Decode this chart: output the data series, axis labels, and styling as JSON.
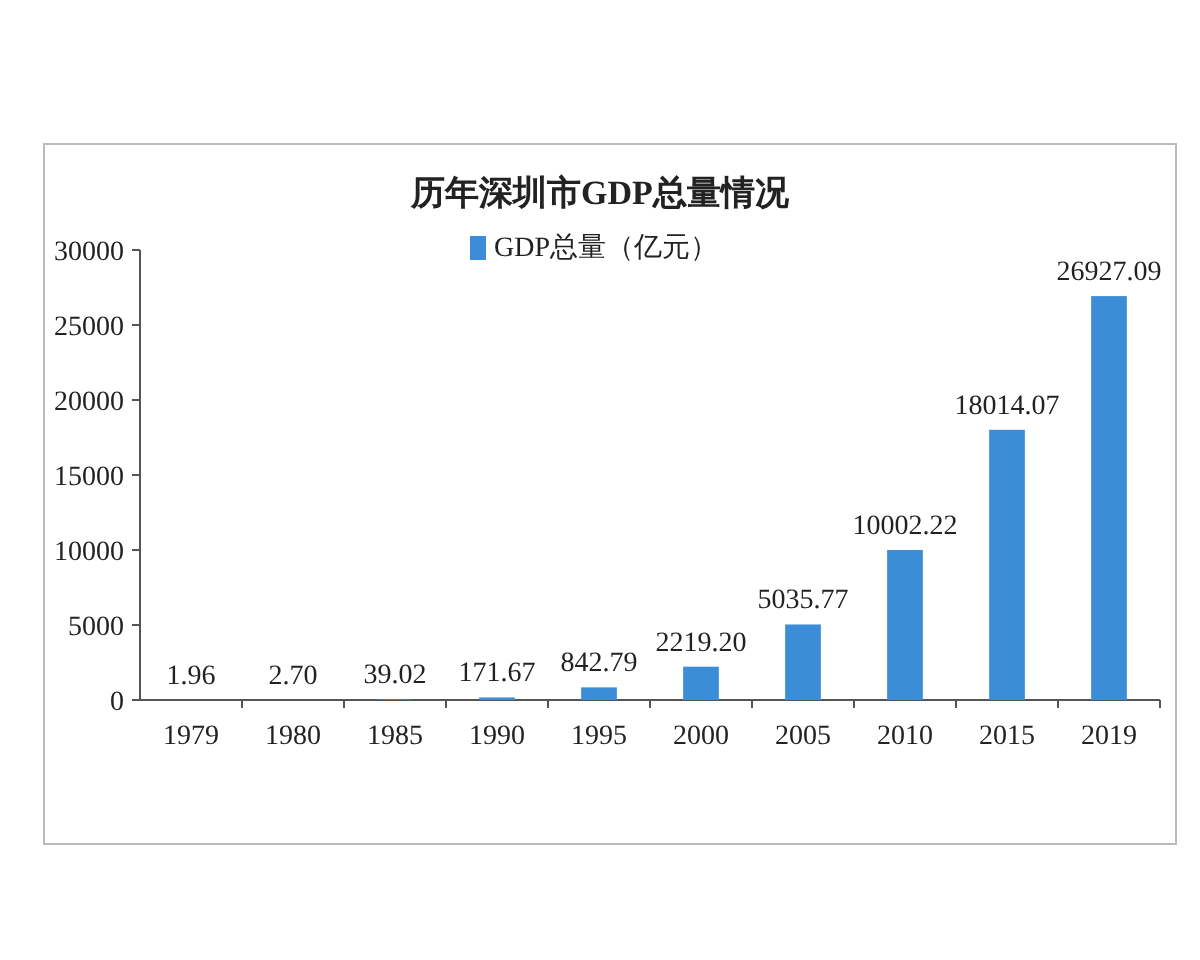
{
  "chart_data": {
    "type": "bar",
    "title": "历年深圳市GDP总量情况",
    "categories": [
      "1979",
      "1980",
      "1985",
      "1990",
      "1995",
      "2000",
      "2005",
      "2010",
      "2015",
      "2019"
    ],
    "series": [
      {
        "name": "GDP总量（亿元）",
        "color": "#3c8dd8",
        "values": [
          1.96,
          2.7,
          39.02,
          171.67,
          842.79,
          2219.2,
          5035.77,
          10002.22,
          18014.07,
          26927.09
        ],
        "value_labels": [
          "1.96",
          "2.70",
          "39.02",
          "171.67",
          "842.79",
          "2219.20",
          "5035.77",
          "10002.22",
          "18014.07",
          "26927.09"
        ]
      }
    ],
    "ylim": [
      0,
      30000
    ],
    "yticks": [
      0,
      5000,
      10000,
      15000,
      20000,
      25000,
      30000
    ],
    "legend": "top",
    "grid": false
  }
}
